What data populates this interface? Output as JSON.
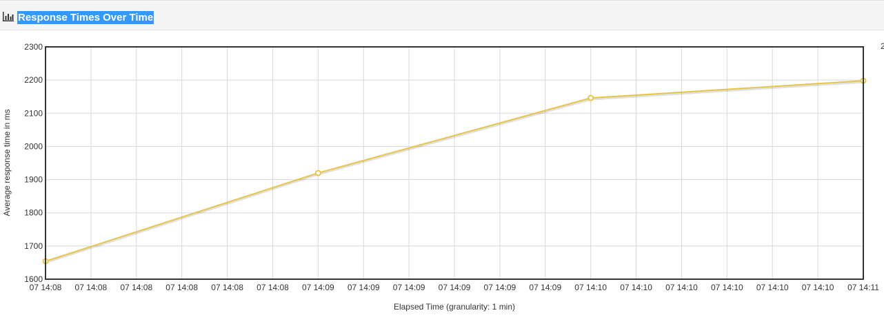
{
  "panel": {
    "title": "Response Times Over Time",
    "icon": "bar-chart-icon"
  },
  "chart_data": {
    "type": "line",
    "title": "",
    "xlabel": "Elapsed Time (granularity: 1 min)",
    "ylabel": "Average response time in ms",
    "ylim": [
      1600,
      2300
    ],
    "yticks": [
      1600,
      1700,
      1800,
      1900,
      2000,
      2100,
      2200,
      2300
    ],
    "xtick_labels": [
      "07 14:08",
      "07 14:08",
      "07 14:08",
      "07 14:08",
      "07 14:08",
      "07 14:08",
      "07 14:09",
      "07 14:09",
      "07 14:09",
      "07 14:09",
      "07 14:09",
      "07 14:09",
      "07 14:10",
      "07 14:10",
      "07 14:10",
      "07 14:10",
      "07 14:10",
      "07 14:10",
      "07 14:11"
    ],
    "x": [
      "07 14:08",
      "07 14:09",
      "07 14:10",
      "07 14:11"
    ],
    "series": [
      {
        "name": "",
        "color": "#e8c547",
        "values": [
          1654,
          1920,
          2146,
          2198
        ]
      }
    ],
    "grid": true,
    "legend": "none"
  },
  "edge_glyph": "2"
}
